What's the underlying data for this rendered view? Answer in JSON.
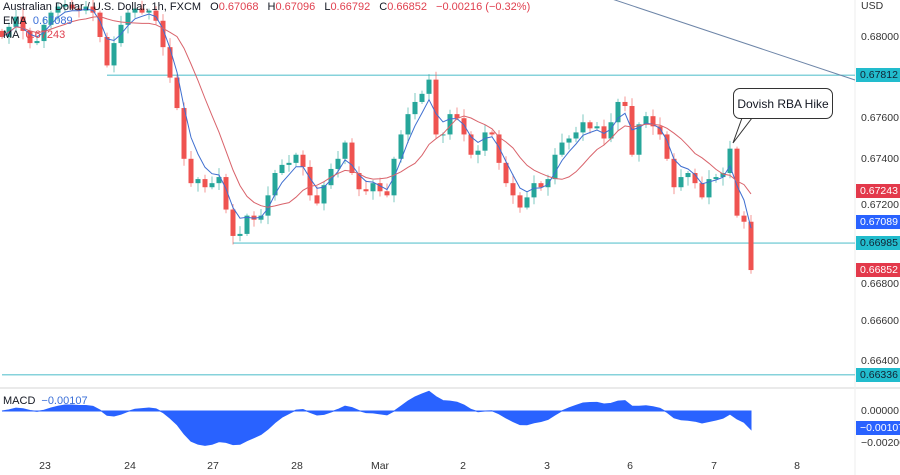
{
  "header": {
    "symbol": "Australian Dollar / U.S. Dollar, 1h, FXCM",
    "o_label": "O",
    "o": "0.67068",
    "h_label": "H",
    "h": "0.67096",
    "l_label": "L",
    "l": "0.66792",
    "c_label": "C",
    "c": "0.66852",
    "change": "−0.00216 (−0.32%)",
    "ema_label": "EMA",
    "ema": "0.67089",
    "ma_label": "MA",
    "ma": "0.67243",
    "macd_label": "MACD",
    "macd": "−0.00107"
  },
  "annotation": "Dovish RBA Hike",
  "currency": "USD",
  "colors": {
    "up": "#26a69a",
    "down": "#ef5350",
    "ema": "#3f6fd0",
    "ma": "#d9636b",
    "level": "#5fc4cf",
    "macd": "#2962ff",
    "trend": "#6d85a8"
  },
  "chart_data": {
    "type": "candlestick",
    "title": "Australian Dollar / U.S. Dollar, 1h, FXCM",
    "interval_hours": 2,
    "close": [
      0.68,
      0.6805,
      0.681,
      0.6803,
      0.6797,
      0.6798,
      0.6806,
      0.6812,
      0.6815,
      0.6816,
      0.6814,
      0.6813,
      0.6815,
      0.6812,
      0.68,
      0.6786,
      0.6797,
      0.6806,
      0.6812,
      0.6814,
      0.6812,
      0.6813,
      0.6808,
      0.6795,
      0.678,
      0.6765,
      0.674,
      0.6728,
      0.673,
      0.6726,
      0.6728,
      0.6731,
      0.6715,
      0.6702,
      0.6703,
      0.6712,
      0.671,
      0.6712,
      0.6722,
      0.6733,
      0.6737,
      0.6738,
      0.6742,
      0.6736,
      0.6722,
      0.6718,
      0.6727,
      0.6735,
      0.674,
      0.6748,
      0.6733,
      0.6725,
      0.6724,
      0.6728,
      0.6724,
      0.6722,
      0.674,
      0.6752,
      0.6762,
      0.6768,
      0.6772,
      0.6779,
      0.6752,
      0.6752,
      0.6762,
      0.676,
      0.6752,
      0.6742,
      0.6744,
      0.6753,
      0.6752,
      0.6738,
      0.6728,
      0.6722,
      0.6716,
      0.6721,
      0.6728,
      0.6726,
      0.673,
      0.6742,
      0.6748,
      0.675,
      0.6753,
      0.6758,
      0.6755,
      0.6756,
      0.675,
      0.6758,
      0.6768,
      0.6766,
      0.6742,
      0.6757,
      0.6761,
      0.6756,
      0.6752,
      0.674,
      0.6726,
      0.6731,
      0.6733,
      0.6728,
      0.6721,
      0.673,
      0.6731,
      0.6733,
      0.6745,
      0.6712,
      0.6709,
      0.66852
    ],
    "x_ticks": [
      "23",
      "24",
      "27",
      "28",
      "Mar",
      "2",
      "3",
      "6",
      "7",
      "8"
    ],
    "y_ticks": [
      "0.68000",
      "0.67600",
      "0.67400",
      "0.67200",
      "0.66800",
      "0.66600",
      "0.66400"
    ],
    "y_tick_values": [
      0.68,
      0.676,
      0.674,
      0.672,
      0.668,
      0.666,
      0.664
    ],
    "ylim": [
      0.6625,
      0.6818
    ],
    "levels": [
      {
        "label": "0.67812",
        "value": 0.67812,
        "from_index": 15
      },
      {
        "label": "0.66985",
        "value": 0.66985,
        "from_index": 33
      },
      {
        "label": "0.66336",
        "value": 0.66336,
        "from_index": 0
      }
    ],
    "badges": [
      {
        "label": "0.67243",
        "value": 0.67243,
        "kind": "ma"
      },
      {
        "label": "0.67089",
        "value": 0.67089,
        "kind": "ema"
      },
      {
        "label": "0.66852",
        "value": 0.66852,
        "kind": "price"
      }
    ],
    "macd_ticks": [
      "0.00000",
      "−0.00200"
    ],
    "macd_tick_values": [
      0,
      -0.002
    ],
    "macd_badge": "−0.00107"
  }
}
